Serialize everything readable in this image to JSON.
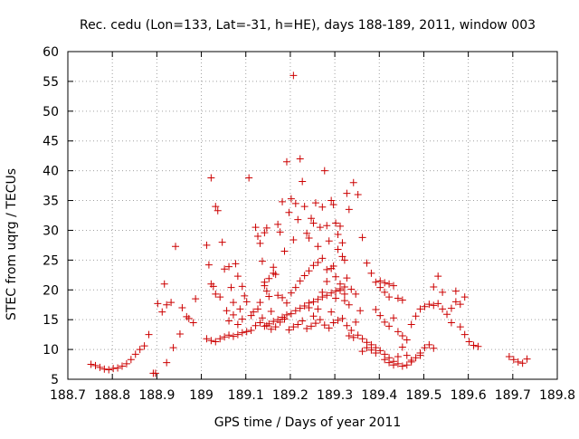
{
  "chart_data": {
    "type": "scatter",
    "title": "Rec. cedu (Lon=133, Lat=-31, h=HE), days 188-189, 2011, window 003",
    "xlabel": "GPS time / Days of year 2011",
    "ylabel": "STEC from uqrg / TECUs",
    "xlim": [
      188.7,
      189.8
    ],
    "ylim": [
      5,
      60
    ],
    "xticks": [
      "188.7",
      "188.8",
      "188.9",
      "189",
      "189.1",
      "189.2",
      "189.3",
      "189.4",
      "189.5",
      "189.6",
      "189.7",
      "189.8"
    ],
    "yticks": [
      "5",
      "10",
      "15",
      "20",
      "25",
      "30",
      "35",
      "40",
      "45",
      "50",
      "55",
      "60"
    ],
    "grid": true,
    "marker": "+",
    "color": "#cc0000",
    "series": [
      {
        "points": [
          [
            188.752,
            7.5
          ],
          [
            188.762,
            7.3
          ],
          [
            188.772,
            7.0
          ],
          [
            188.782,
            6.7
          ],
          [
            188.792,
            6.6
          ],
          [
            188.802,
            6.8
          ],
          [
            188.812,
            6.9
          ],
          [
            188.822,
            7.2
          ],
          [
            188.832,
            7.6
          ],
          [
            188.842,
            8.3
          ],
          [
            188.852,
            9.2
          ],
          [
            188.862,
            10.0
          ],
          [
            188.872,
            10.6
          ],
          [
            188.882,
            12.5
          ],
          [
            188.892,
            6.0
          ],
          [
            188.897,
            6.0
          ],
          [
            188.902,
            17.7
          ],
          [
            188.912,
            16.3
          ],
          [
            188.922,
            17.5
          ],
          [
            188.917,
            21.0
          ],
          [
            188.932,
            17.9
          ],
          [
            188.942,
            27.3
          ],
          [
            188.937,
            10.3
          ],
          [
            188.952,
            12.6
          ],
          [
            188.957,
            17.0
          ],
          [
            188.967,
            15.5
          ],
          [
            188.972,
            15.2
          ],
          [
            188.982,
            14.5
          ],
          [
            188.987,
            18.5
          ],
          [
            188.922,
            7.8
          ],
          [
            189.012,
            27.5
          ],
          [
            189.017,
            24.2
          ],
          [
            189.022,
            38.8
          ],
          [
            189.032,
            34.0
          ],
          [
            189.037,
            33.3
          ],
          [
            189.027,
            20.6
          ],
          [
            189.022,
            21.0
          ],
          [
            189.032,
            19.3
          ],
          [
            189.042,
            18.8
          ],
          [
            189.047,
            28.0
          ],
          [
            189.052,
            23.5
          ],
          [
            189.057,
            16.5
          ],
          [
            189.062,
            23.9
          ],
          [
            189.067,
            20.4
          ],
          [
            189.072,
            17.9
          ],
          [
            189.077,
            24.4
          ],
          [
            189.082,
            22.3
          ],
          [
            189.087,
            16.8
          ],
          [
            189.092,
            20.6
          ],
          [
            189.097,
            19.0
          ],
          [
            189.107,
            38.8
          ],
          [
            189.102,
            18.0
          ],
          [
            189.112,
            15.7
          ],
          [
            189.117,
            16.3
          ],
          [
            189.012,
            11.8
          ],
          [
            189.022,
            11.5
          ],
          [
            189.032,
            11.3
          ],
          [
            189.042,
            11.8
          ],
          [
            189.052,
            12.1
          ],
          [
            189.062,
            12.4
          ],
          [
            189.072,
            12.2
          ],
          [
            189.082,
            12.5
          ],
          [
            189.092,
            12.8
          ],
          [
            189.102,
            13.0
          ],
          [
            189.112,
            13.2
          ],
          [
            189.062,
            14.8
          ],
          [
            189.072,
            15.8
          ],
          [
            189.082,
            14.2
          ],
          [
            189.092,
            15.1
          ],
          [
            189.122,
            30.5
          ],
          [
            189.127,
            29.0
          ],
          [
            189.132,
            27.8
          ],
          [
            189.142,
            29.6
          ],
          [
            189.147,
            30.4
          ],
          [
            189.137,
            24.8
          ],
          [
            189.142,
            21.3
          ],
          [
            189.147,
            19.8
          ],
          [
            189.152,
            18.9
          ],
          [
            189.157,
            16.4
          ],
          [
            189.162,
            23.8
          ],
          [
            189.167,
            22.6
          ],
          [
            189.172,
            31.0
          ],
          [
            189.177,
            29.7
          ],
          [
            189.182,
            34.8
          ],
          [
            189.187,
            26.5
          ],
          [
            189.192,
            41.5
          ],
          [
            189.197,
            33.0
          ],
          [
            189.202,
            35.3
          ],
          [
            189.207,
            28.4
          ],
          [
            189.212,
            34.5
          ],
          [
            189.217,
            31.8
          ],
          [
            189.222,
            42.0
          ],
          [
            189.227,
            38.2
          ],
          [
            189.232,
            34.0
          ],
          [
            189.237,
            29.5
          ],
          [
            189.242,
            28.7
          ],
          [
            189.247,
            32.0
          ],
          [
            189.252,
            31.2
          ],
          [
            189.257,
            34.6
          ],
          [
            189.262,
            27.3
          ],
          [
            189.267,
            30.5
          ],
          [
            189.272,
            33.9
          ],
          [
            189.277,
            40.0
          ],
          [
            189.282,
            30.8
          ],
          [
            189.287,
            28.2
          ],
          [
            189.292,
            35.0
          ],
          [
            189.297,
            34.3
          ],
          [
            189.302,
            31.2
          ],
          [
            189.307,
            29.3
          ],
          [
            189.312,
            30.7
          ],
          [
            189.317,
            27.9
          ],
          [
            189.322,
            25.0
          ],
          [
            189.327,
            36.2
          ],
          [
            189.332,
            33.5
          ],
          [
            189.342,
            38.0
          ],
          [
            189.352,
            36.0
          ],
          [
            189.362,
            28.8
          ],
          [
            189.207,
            56.0
          ],
          [
            189.122,
            14.0
          ],
          [
            189.132,
            14.5
          ],
          [
            189.142,
            13.9
          ],
          [
            189.152,
            14.3
          ],
          [
            189.162,
            14.7
          ],
          [
            189.172,
            15.0
          ],
          [
            189.182,
            15.4
          ],
          [
            189.192,
            15.8
          ],
          [
            189.202,
            16.0
          ],
          [
            189.212,
            16.5
          ],
          [
            189.222,
            16.9
          ],
          [
            189.232,
            17.3
          ],
          [
            189.242,
            17.8
          ],
          [
            189.252,
            18.0
          ],
          [
            189.262,
            18.4
          ],
          [
            189.272,
            18.8
          ],
          [
            189.282,
            19.1
          ],
          [
            189.292,
            19.5
          ],
          [
            189.302,
            19.8
          ],
          [
            189.312,
            20.2
          ],
          [
            189.322,
            20.5
          ],
          [
            189.132,
            17.9
          ],
          [
            189.142,
            20.7
          ],
          [
            189.152,
            21.9
          ],
          [
            189.162,
            22.8
          ],
          [
            189.172,
            19.1
          ],
          [
            189.182,
            18.7
          ],
          [
            189.192,
            17.8
          ],
          [
            189.202,
            19.5
          ],
          [
            189.212,
            20.4
          ],
          [
            189.222,
            21.5
          ],
          [
            189.232,
            22.4
          ],
          [
            189.242,
            23.2
          ],
          [
            189.252,
            24.1
          ],
          [
            189.262,
            24.6
          ],
          [
            189.272,
            25.3
          ],
          [
            189.282,
            23.4
          ],
          [
            189.292,
            23.6
          ],
          [
            189.302,
            22.2
          ],
          [
            189.312,
            21.0
          ],
          [
            189.322,
            19.3
          ],
          [
            189.127,
            16.8
          ],
          [
            189.137,
            15.3
          ],
          [
            189.147,
            14.0
          ],
          [
            189.157,
            13.4
          ],
          [
            189.167,
            13.8
          ],
          [
            189.177,
            14.6
          ],
          [
            189.187,
            15.1
          ],
          [
            189.197,
            13.3
          ],
          [
            189.207,
            13.8
          ],
          [
            189.217,
            14.2
          ],
          [
            189.227,
            14.8
          ],
          [
            189.237,
            13.5
          ],
          [
            189.247,
            13.9
          ],
          [
            189.257,
            14.4
          ],
          [
            189.267,
            15.0
          ],
          [
            189.277,
            14.1
          ],
          [
            189.287,
            13.6
          ],
          [
            189.297,
            14.5
          ],
          [
            189.307,
            14.9
          ],
          [
            189.317,
            15.2
          ],
          [
            189.327,
            14.0
          ],
          [
            189.337,
            13.2
          ],
          [
            189.347,
            14.6
          ],
          [
            189.357,
            16.5
          ],
          [
            189.242,
            17.0
          ],
          [
            189.252,
            15.6
          ],
          [
            189.262,
            16.8
          ],
          [
            189.272,
            19.6
          ],
          [
            189.282,
            21.4
          ],
          [
            189.292,
            16.3
          ],
          [
            189.302,
            18.6
          ],
          [
            189.312,
            19.9
          ],
          [
            189.322,
            18.2
          ],
          [
            189.332,
            17.5
          ],
          [
            189.337,
            20.1
          ],
          [
            189.347,
            19.3
          ],
          [
            189.327,
            22.0
          ],
          [
            189.317,
            25.6
          ],
          [
            189.307,
            26.8
          ],
          [
            189.297,
            24.0
          ],
          [
            189.332,
            12.3
          ],
          [
            189.342,
            12.0
          ],
          [
            189.352,
            12.4
          ],
          [
            189.362,
            11.8
          ],
          [
            189.372,
            11.2
          ],
          [
            189.382,
            10.8
          ],
          [
            189.392,
            10.3
          ],
          [
            189.402,
            9.8
          ],
          [
            189.412,
            9.2
          ],
          [
            189.422,
            8.6
          ],
          [
            189.432,
            8.0
          ],
          [
            189.442,
            7.6
          ],
          [
            189.452,
            7.2
          ],
          [
            189.462,
            7.4
          ],
          [
            189.472,
            7.9
          ],
          [
            189.482,
            8.6
          ],
          [
            189.492,
            9.4
          ],
          [
            189.502,
            10.3
          ],
          [
            189.512,
            10.8
          ],
          [
            189.522,
            10.2
          ],
          [
            189.372,
            24.5
          ],
          [
            189.382,
            22.8
          ],
          [
            189.392,
            21.3
          ],
          [
            189.402,
            20.4
          ],
          [
            189.412,
            19.6
          ],
          [
            189.422,
            18.8
          ],
          [
            189.432,
            20.7
          ],
          [
            189.442,
            18.6
          ],
          [
            189.452,
            18.3
          ],
          [
            189.402,
            21.5
          ],
          [
            189.412,
            21.2
          ],
          [
            189.422,
            21.0
          ],
          [
            189.392,
            16.7
          ],
          [
            189.402,
            15.7
          ],
          [
            189.412,
            14.6
          ],
          [
            189.422,
            13.9
          ],
          [
            189.432,
            15.3
          ],
          [
            189.442,
            13.0
          ],
          [
            189.452,
            12.3
          ],
          [
            189.462,
            11.6
          ],
          [
            189.472,
            14.2
          ],
          [
            189.482,
            15.6
          ],
          [
            189.492,
            16.8
          ],
          [
            189.502,
            17.2
          ],
          [
            189.512,
            17.6
          ],
          [
            189.522,
            17.4
          ],
          [
            189.532,
            17.7
          ],
          [
            189.542,
            16.8
          ],
          [
            189.552,
            15.9
          ],
          [
            189.562,
            16.9
          ],
          [
            189.572,
            18.0
          ],
          [
            189.582,
            17.6
          ],
          [
            189.532,
            22.3
          ],
          [
            189.522,
            20.5
          ],
          [
            189.542,
            19.6
          ],
          [
            189.572,
            19.8
          ],
          [
            189.592,
            18.8
          ],
          [
            189.562,
            14.5
          ],
          [
            189.582,
            13.8
          ],
          [
            189.592,
            12.5
          ],
          [
            189.602,
            11.3
          ],
          [
            189.612,
            10.7
          ],
          [
            189.622,
            10.5
          ],
          [
            189.362,
            9.7
          ],
          [
            189.372,
            10.3
          ],
          [
            189.382,
            9.9
          ],
          [
            189.392,
            9.4
          ],
          [
            189.412,
            8.3
          ],
          [
            189.422,
            7.8
          ],
          [
            189.432,
            7.4
          ],
          [
            189.442,
            8.8
          ],
          [
            189.452,
            10.4
          ],
          [
            189.462,
            9.0
          ],
          [
            189.472,
            8.2
          ],
          [
            189.492,
            9.0
          ],
          [
            189.692,
            8.8
          ],
          [
            189.702,
            8.3
          ],
          [
            189.712,
            7.9
          ],
          [
            189.722,
            7.7
          ],
          [
            189.732,
            8.4
          ]
        ]
      }
    ]
  }
}
